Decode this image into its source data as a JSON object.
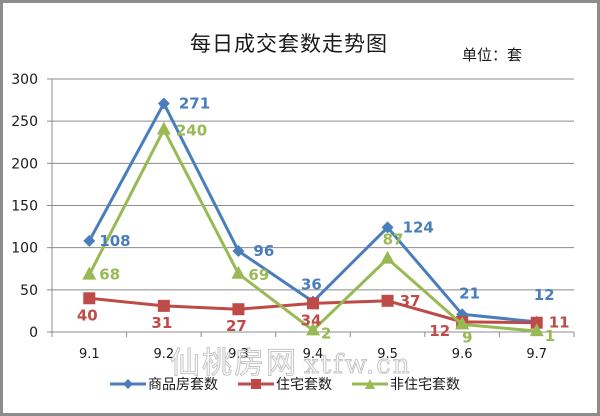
{
  "chart_data": {
    "type": "line",
    "title": "每日成交套数走势图",
    "unit_label": "单位：套",
    "xlabel": "",
    "ylabel": "",
    "categories": [
      "9.1",
      "9.2",
      "9.3",
      "9.4",
      "9.5",
      "9.6",
      "9.7"
    ],
    "ylim": [
      0,
      300
    ],
    "yticks": [
      0,
      50,
      100,
      150,
      200,
      250,
      300
    ],
    "grid": true,
    "legend_position": "bottom",
    "series": [
      {
        "name": "商品房套数",
        "color": "#4a7ebb",
        "marker": "diamond",
        "values": [
          108,
          271,
          96,
          36,
          124,
          21,
          12
        ]
      },
      {
        "name": "住宅套数",
        "color": "#be4b48",
        "marker": "square",
        "values": [
          40,
          31,
          27,
          34,
          37,
          12,
          11
        ]
      },
      {
        "name": "非住宅套数",
        "color": "#98b954",
        "marker": "triangle",
        "values": [
          68,
          240,
          69,
          2,
          87,
          9,
          1
        ]
      }
    ]
  },
  "header": {
    "title": "每日成交套数走势图",
    "unit": "单位：套"
  },
  "legend": [
    {
      "label": "商品房套数",
      "color": "#4a7ebb",
      "marker": "diamond"
    },
    {
      "label": "住宅套数",
      "color": "#be4b48",
      "marker": "square"
    },
    {
      "label": "非住宅套数",
      "color": "#98b954",
      "marker": "triangle"
    }
  ],
  "watermark": {
    "text": "仙桃房网",
    "url": "xtfw.cn"
  }
}
